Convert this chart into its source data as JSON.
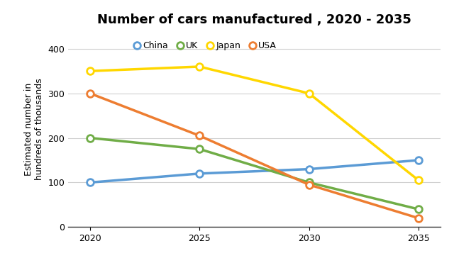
{
  "title": "Number of cars manufactured , 2020 - 2035",
  "ylabel": "Estimated number in\nhundreds of thousands",
  "x_values": [
    2020,
    2025,
    2030,
    2035
  ],
  "series": [
    {
      "label": "China",
      "color": "#5b9bd5",
      "values": [
        100,
        120,
        130,
        150
      ]
    },
    {
      "label": "UK",
      "color": "#70ad47",
      "values": [
        200,
        175,
        100,
        40
      ]
    },
    {
      "label": "Japan",
      "color": "#ffd700",
      "values": [
        350,
        360,
        300,
        105
      ]
    },
    {
      "label": "USA",
      "color": "#ed7d31",
      "values": [
        300,
        205,
        95,
        20
      ]
    }
  ],
  "ylim": [
    0,
    440
  ],
  "yticks": [
    0,
    100,
    200,
    300,
    400
  ],
  "xlim": [
    2019.0,
    2036.0
  ],
  "xticks": [
    2020,
    2025,
    2030,
    2035
  ],
  "bg_color": "#ffffff",
  "grid_color": "#d0d0d0",
  "title_fontsize": 13,
  "label_fontsize": 9,
  "legend_fontsize": 9,
  "line_width": 2.5,
  "marker_size": 7,
  "marker_style": "o",
  "marker_facecolor": "white",
  "marker_edgewidth": 2.0
}
